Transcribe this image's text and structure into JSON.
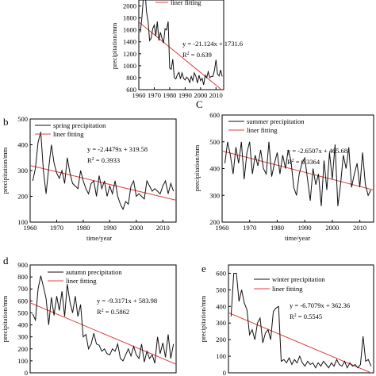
{
  "colors": {
    "series": "#111111",
    "fit": "#e04040"
  },
  "chart_data": [
    {
      "id": "a",
      "panel_label": "",
      "type": "line",
      "xlim": [
        1960,
        2015
      ],
      "ylim": [
        600,
        2100
      ],
      "xticks": [
        1960,
        1970,
        1980,
        1990,
        2000,
        2010
      ],
      "yticks": [
        600,
        800,
        1000,
        1200,
        1400,
        1600,
        1800,
        2000
      ],
      "xlabel": "",
      "ylabel": "precipitation/mm",
      "legend": {
        "position": "top-right",
        "series_label": "",
        "fit_label": "liner fitting"
      },
      "equation": "y = -21.124x + 1731.6",
      "r2_label": "R",
      "r2_value": " = 0.639",
      "fit": {
        "slope": -21.124,
        "intercept": 1731.6
      },
      "x": [
        1961,
        1962,
        1963,
        1964,
        1965,
        1966,
        1967,
        1968,
        1969,
        1970,
        1971,
        1972,
        1973,
        1974,
        1975,
        1976,
        1977,
        1978,
        1979,
        1980,
        1981,
        1982,
        1983,
        1984,
        1985,
        1986,
        1987,
        1988,
        1989,
        1990,
        1991,
        1992,
        1993,
        1994,
        1995,
        1996,
        1997,
        1998,
        1999,
        2000,
        2001,
        2002,
        2003,
        2004,
        2005,
        2006,
        2007,
        2008,
        2009,
        2010,
        2011,
        2012,
        2013,
        2014
      ],
      "values": [
        1560,
        1810,
        2150,
        2260,
        1900,
        1740,
        1420,
        1460,
        1620,
        1680,
        1500,
        1740,
        1420,
        1560,
        1460,
        1380,
        1620,
        1600,
        1740,
        960,
        940,
        1110,
        800,
        780,
        850,
        890,
        780,
        880,
        790,
        760,
        810,
        780,
        720,
        820,
        750,
        880,
        820,
        710,
        840,
        750,
        790,
        680,
        840,
        800,
        900,
        800,
        820,
        820,
        920,
        1100,
        860,
        830,
        930,
        820
      ]
    },
    {
      "id": "b",
      "panel_label": "b",
      "type": "line",
      "xlim": [
        1960,
        2015
      ],
      "ylim": [
        100,
        500
      ],
      "xticks": [
        1960,
        1970,
        1980,
        1990,
        2000,
        2010
      ],
      "yticks": [
        100,
        200,
        300,
        400,
        500
      ],
      "xlabel": "time/year",
      "ylabel": "precipitation/mm",
      "legend": {
        "position": "top-left",
        "series_label": "spring precipitation",
        "fit_label": "liner fitting"
      },
      "equation": "y = -2.4479x + 319.58",
      "r2_label": "R",
      "r2_value": " = 0.3933",
      "fit": {
        "slope": -2.4479,
        "intercept": 319.58
      },
      "x": [
        1961,
        1962,
        1963,
        1964,
        1965,
        1966,
        1967,
        1968,
        1969,
        1970,
        1971,
        1972,
        1973,
        1974,
        1975,
        1976,
        1977,
        1978,
        1979,
        1980,
        1981,
        1982,
        1983,
        1984,
        1985,
        1986,
        1987,
        1988,
        1989,
        1990,
        1991,
        1992,
        1993,
        1994,
        1995,
        1996,
        1997,
        1998,
        1999,
        2000,
        2001,
        2002,
        2003,
        2004,
        2005,
        2006,
        2007,
        2008,
        2009,
        2010,
        2011,
        2012,
        2013,
        2014
      ],
      "values": [
        260,
        310,
        410,
        450,
        300,
        210,
        310,
        400,
        330,
        290,
        270,
        300,
        250,
        350,
        290,
        250,
        240,
        230,
        300,
        260,
        230,
        210,
        250,
        260,
        200,
        280,
        230,
        260,
        200,
        240,
        210,
        260,
        200,
        170,
        150,
        180,
        170,
        240,
        260,
        200,
        210,
        200,
        190,
        260,
        240,
        220,
        230,
        220,
        210,
        240,
        260,
        210,
        250,
        220
      ]
    },
    {
      "id": "c",
      "panel_label": "C",
      "type": "line",
      "xlim": [
        1960,
        2015
      ],
      "ylim": [
        200,
        600
      ],
      "xticks": [
        1960,
        1970,
        1980,
        1990,
        2000,
        2010
      ],
      "yticks": [
        200,
        300,
        400,
        500,
        600
      ],
      "xlabel": "time/year",
      "ylabel": "precipitation/mm",
      "legend": {
        "position": "top-left",
        "series_label": "summer precipitation",
        "fit_label": "liner fitting"
      },
      "equation": "y = -2.6507x + 465.68",
      "r2_label": "R",
      "r2_value": " = 0.3364",
      "fit": {
        "slope": -2.6507,
        "intercept": 465.68
      },
      "x": [
        1961,
        1962,
        1963,
        1964,
        1965,
        1966,
        1967,
        1968,
        1969,
        1970,
        1971,
        1972,
        1973,
        1974,
        1975,
        1976,
        1977,
        1978,
        1979,
        1980,
        1981,
        1982,
        1983,
        1984,
        1985,
        1986,
        1987,
        1988,
        1989,
        1990,
        1991,
        1992,
        1993,
        1994,
        1995,
        1996,
        1997,
        1998,
        1999,
        2000,
        2001,
        2002,
        2003,
        2004,
        2005,
        2006,
        2007,
        2008,
        2009,
        2010,
        2011,
        2012,
        2013,
        2014
      ],
      "values": [
        420,
        500,
        450,
        380,
        480,
        420,
        500,
        360,
        460,
        500,
        380,
        450,
        410,
        470,
        400,
        380,
        500,
        370,
        420,
        460,
        380,
        450,
        400,
        470,
        430,
        330,
        300,
        380,
        420,
        440,
        360,
        280,
        400,
        340,
        380,
        260,
        430,
        320,
        460,
        360,
        490,
        260,
        340,
        450,
        400,
        480,
        330,
        380,
        420,
        330,
        460,
        340,
        300,
        320
      ]
    },
    {
      "id": "d",
      "panel_label": "d",
      "type": "line",
      "xlim": [
        1960,
        2015
      ],
      "ylim": [
        0,
        900
      ],
      "xticks": [],
      "yticks": [
        0,
        100,
        200,
        300,
        400,
        500,
        600,
        700,
        800,
        900
      ],
      "xlabel": "",
      "ylabel": "precipitation/mm",
      "legend": {
        "position": "top-right",
        "series_label": "autumn precipitation",
        "fit_label": "liner fitting"
      },
      "equation": "y = -9.3171x + 583.98",
      "r2_label": "R",
      "r2_value": " = 0.5862",
      "fit": {
        "slope": -9.3171,
        "intercept": 583.98
      },
      "x": [
        1961,
        1962,
        1963,
        1964,
        1965,
        1966,
        1967,
        1968,
        1969,
        1970,
        1971,
        1972,
        1973,
        1974,
        1975,
        1976,
        1977,
        1978,
        1979,
        1980,
        1981,
        1982,
        1983,
        1984,
        1985,
        1986,
        1987,
        1988,
        1989,
        1990,
        1991,
        1992,
        1993,
        1994,
        1995,
        1996,
        1997,
        1998,
        1999,
        2000,
        2001,
        2002,
        2003,
        2004,
        2005,
        2006,
        2007,
        2008,
        2009,
        2010,
        2011,
        2012,
        2013,
        2014
      ],
      "values": [
        490,
        440,
        700,
        810,
        720,
        620,
        400,
        630,
        480,
        640,
        520,
        680,
        470,
        740,
        590,
        500,
        640,
        470,
        570,
        300,
        320,
        200,
        240,
        330,
        240,
        230,
        180,
        200,
        160,
        150,
        200,
        180,
        240,
        120,
        100,
        150,
        200,
        140,
        220,
        150,
        120,
        240,
        90,
        180,
        120,
        150,
        80,
        300,
        160,
        250,
        130,
        320,
        120,
        240
      ]
    },
    {
      "id": "e",
      "panel_label": "e",
      "type": "line",
      "xlim": [
        1960,
        2015
      ],
      "ylim": [
        0,
        650
      ],
      "xticks": [],
      "yticks": [
        0,
        100,
        200,
        300,
        400,
        500,
        600
      ],
      "xlabel": "",
      "ylabel": "precipitation/mm",
      "legend": {
        "position": "top-right",
        "series_label": "winter precipitation",
        "fit_label": "liner fitting"
      },
      "equation": "y = -6.7079x + 362.36",
      "r2_label": "R",
      "r2_value": " = 0.5545",
      "fit": {
        "slope": -6.7079,
        "intercept": 362.36
      },
      "x": [
        1961,
        1962,
        1963,
        1964,
        1965,
        1966,
        1967,
        1968,
        1969,
        1970,
        1971,
        1972,
        1973,
        1974,
        1975,
        1976,
        1977,
        1978,
        1979,
        1980,
        1981,
        1982,
        1983,
        1984,
        1985,
        1986,
        1987,
        1988,
        1989,
        1990,
        1991,
        1992,
        1993,
        1994,
        1995,
        1996,
        1997,
        1998,
        1999,
        2000,
        2001,
        2002,
        2003,
        2004,
        2005,
        2006,
        2007,
        2008,
        2009,
        2010,
        2011,
        2012,
        2013,
        2014
      ],
      "values": [
        340,
        600,
        600,
        430,
        500,
        420,
        380,
        230,
        260,
        200,
        300,
        330,
        180,
        240,
        260,
        200,
        370,
        390,
        400,
        70,
        80,
        60,
        90,
        50,
        80,
        60,
        100,
        60,
        40,
        70,
        50,
        60,
        30,
        60,
        40,
        70,
        50,
        30,
        60,
        40,
        80,
        50,
        40,
        70,
        30,
        60,
        40,
        50,
        30,
        50,
        220,
        70,
        80,
        40
      ]
    }
  ]
}
